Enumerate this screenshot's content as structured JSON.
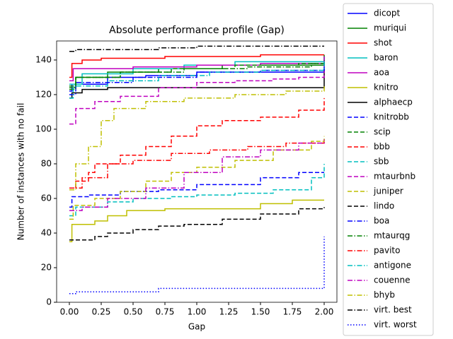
{
  "chart_data": {
    "type": "line",
    "step": "post",
    "title": "Absolute performance profile (Gap)",
    "x_label": "Gap",
    "y_label": "Number of instances with no fail",
    "xlim": [
      -0.1,
      2.1
    ],
    "ylim": [
      0,
      151
    ],
    "xticks": [
      {
        "value": 0,
        "label": "0.00"
      },
      {
        "value": 0.25,
        "label": "0.25"
      },
      {
        "value": 0.5,
        "label": "0.50"
      },
      {
        "value": 0.75,
        "label": "0.75"
      },
      {
        "value": 1,
        "label": "1.00"
      },
      {
        "value": 1.25,
        "label": "1.25"
      },
      {
        "value": 1.5,
        "label": "1.50"
      },
      {
        "value": 1.75,
        "label": "1.75"
      },
      {
        "value": 2,
        "label": "2.00"
      }
    ],
    "yticks": [
      0,
      20,
      40,
      60,
      80,
      100,
      120,
      140
    ],
    "series": [
      {
        "name": "dicopt",
        "color": "#0000ff",
        "linestyle": "solid",
        "x": [
          0,
          0.02,
          0.3,
          0.6,
          1.0,
          2.0
        ],
        "values": [
          122,
          126,
          130,
          131,
          133,
          140
        ]
      },
      {
        "name": "muriqui",
        "color": "#008000",
        "linestyle": "solid",
        "x": [
          0,
          0.05,
          0.3,
          0.7,
          1.2,
          2.0
        ],
        "values": [
          124,
          130,
          133,
          135,
          137,
          143
        ]
      },
      {
        "name": "shot",
        "color": "#ff0000",
        "linestyle": "solid",
        "x": [
          0,
          0.02,
          0.1,
          0.25,
          0.75,
          1.5,
          2.0
        ],
        "values": [
          130,
          138,
          140,
          141,
          142,
          143,
          143
        ]
      },
      {
        "name": "baron",
        "color": "#00bfbf",
        "linestyle": "solid",
        "x": [
          0,
          0.1,
          0.5,
          0.9,
          1.3,
          2.0
        ],
        "values": [
          126,
          132,
          135,
          137,
          139,
          142
        ]
      },
      {
        "name": "aoa",
        "color": "#bf00bf",
        "linestyle": "solid",
        "x": [
          0,
          0.03,
          0.5,
          1.0,
          1.5,
          2.0
        ],
        "values": [
          128,
          135,
          136,
          137,
          138,
          142
        ]
      },
      {
        "name": "knitro",
        "color": "#bfbf00",
        "linestyle": "solid",
        "x": [
          0,
          0.02,
          0.2,
          0.3,
          0.45,
          0.75,
          1.5,
          1.75,
          2.0
        ],
        "values": [
          35,
          45,
          47,
          50,
          53,
          54,
          57,
          59,
          59
        ]
      },
      {
        "name": "alphaecp",
        "color": "#000000",
        "linestyle": "solid",
        "x": [
          0,
          0.02,
          0.1,
          0.3,
          2.0
        ],
        "values": [
          118,
          121,
          123,
          124,
          135
        ]
      },
      {
        "name": "knitrobb",
        "color": "#0000ff",
        "linestyle": "dashed",
        "x": [
          0,
          0.02,
          0.15,
          0.4,
          0.7,
          1.0,
          1.5,
          1.8,
          2.0
        ],
        "values": [
          55,
          61,
          62,
          64,
          65,
          68,
          72,
          75,
          75
        ]
      },
      {
        "name": "scip",
        "color": "#008000",
        "linestyle": "dashed",
        "x": [
          0,
          0.05,
          0.4,
          0.8,
          1.3,
          1.8,
          2.0
        ],
        "values": [
          125,
          130,
          133,
          135,
          137,
          138,
          138
        ]
      },
      {
        "name": "bbb",
        "color": "#ff0000",
        "linestyle": "dashed",
        "x": [
          0,
          0.05,
          0.15,
          0.2,
          0.4,
          0.6,
          0.8,
          1.0,
          1.2,
          1.5,
          1.8,
          2.0
        ],
        "values": [
          66,
          70,
          75,
          80,
          85,
          90,
          96,
          102,
          105,
          107,
          111,
          118
        ]
      },
      {
        "name": "sbb",
        "color": "#00bfbf",
        "linestyle": "dashed",
        "x": [
          0,
          0.05,
          0.3,
          0.5,
          0.8,
          1.0,
          1.3,
          1.6,
          1.9,
          2.0
        ],
        "values": [
          50,
          55,
          58,
          60,
          61,
          62,
          63,
          65,
          72,
          80
        ]
      },
      {
        "name": "mtaurbnb",
        "color": "#bf00bf",
        "linestyle": "dashed",
        "x": [
          0,
          0.05,
          0.2,
          0.4,
          0.7,
          1.0,
          1.3,
          1.6,
          1.8,
          2.0
        ],
        "values": [
          103,
          112,
          116,
          119,
          124,
          127,
          128,
          129,
          130,
          140
        ]
      },
      {
        "name": "juniper",
        "color": "#bfbf00",
        "linestyle": "dashed",
        "x": [
          0,
          0.03,
          0.2,
          0.4,
          0.6,
          0.8,
          1.0,
          1.3,
          1.6,
          1.9,
          2.0
        ],
        "values": [
          48,
          56,
          60,
          64,
          70,
          75,
          78,
          82,
          88,
          93,
          96
        ]
      },
      {
        "name": "lindo",
        "color": "#000000",
        "linestyle": "dashed",
        "x": [
          0,
          0.2,
          0.3,
          0.5,
          0.7,
          0.9,
          1.2,
          1.5,
          1.8,
          2.0
        ],
        "values": [
          36,
          38,
          40,
          42,
          44,
          45,
          48,
          51,
          54,
          55
        ]
      },
      {
        "name": "boa",
        "color": "#0000ff",
        "linestyle": "dashdot",
        "x": [
          0,
          0.05,
          0.5,
          1.0,
          1.5,
          2.0
        ],
        "values": [
          120,
          127,
          130,
          133,
          134,
          137
        ]
      },
      {
        "name": "mtaurqg",
        "color": "#008000",
        "linestyle": "dashdot",
        "x": [
          0,
          0.05,
          0.4,
          0.9,
          1.4,
          1.9,
          2.0
        ],
        "values": [
          123,
          130,
          133,
          135,
          136,
          138,
          140
        ]
      },
      {
        "name": "pavito",
        "color": "#ff0000",
        "linestyle": "dashdot",
        "x": [
          0,
          0.1,
          0.3,
          0.5,
          0.8,
          1.1,
          1.4,
          1.7,
          2.0
        ],
        "values": [
          66,
          72,
          80,
          82,
          86,
          88,
          90,
          92,
          94
        ]
      },
      {
        "name": "antigone",
        "color": "#00bfbf",
        "linestyle": "dashdot",
        "x": [
          0,
          0.03,
          0.3,
          0.7,
          1.1,
          1.5,
          2.0
        ],
        "values": [
          118,
          125,
          128,
          131,
          133,
          134,
          140
        ]
      },
      {
        "name": "couenne",
        "color": "#bf00bf",
        "linestyle": "dashdot",
        "x": [
          0,
          0.1,
          0.3,
          0.6,
          0.9,
          1.2,
          1.5,
          1.8,
          2.0
        ],
        "values": [
          53,
          55,
          60,
          66,
          75,
          84,
          88,
          92,
          94
        ]
      },
      {
        "name": "bhyb",
        "color": "#bfbf00",
        "linestyle": "dashdot",
        "x": [
          0,
          0.05,
          0.15,
          0.25,
          0.35,
          0.6,
          0.9,
          1.3,
          1.7,
          2.0
        ],
        "values": [
          65,
          80,
          90,
          105,
          112,
          116,
          118,
          120,
          122,
          125
        ]
      },
      {
        "name": "virt. best",
        "color": "#000000",
        "linestyle": "dashdot",
        "x": [
          0,
          0.05,
          0.3,
          0.7,
          1.0,
          2.0
        ],
        "values": [
          145,
          146,
          146,
          147,
          148,
          148
        ]
      },
      {
        "name": "virt. worst",
        "color": "#0000ff",
        "linestyle": "dotted",
        "x": [
          0,
          0.05,
          0.7,
          1.99,
          2.0
        ],
        "values": [
          5,
          6,
          8,
          8,
          38
        ]
      }
    ]
  }
}
